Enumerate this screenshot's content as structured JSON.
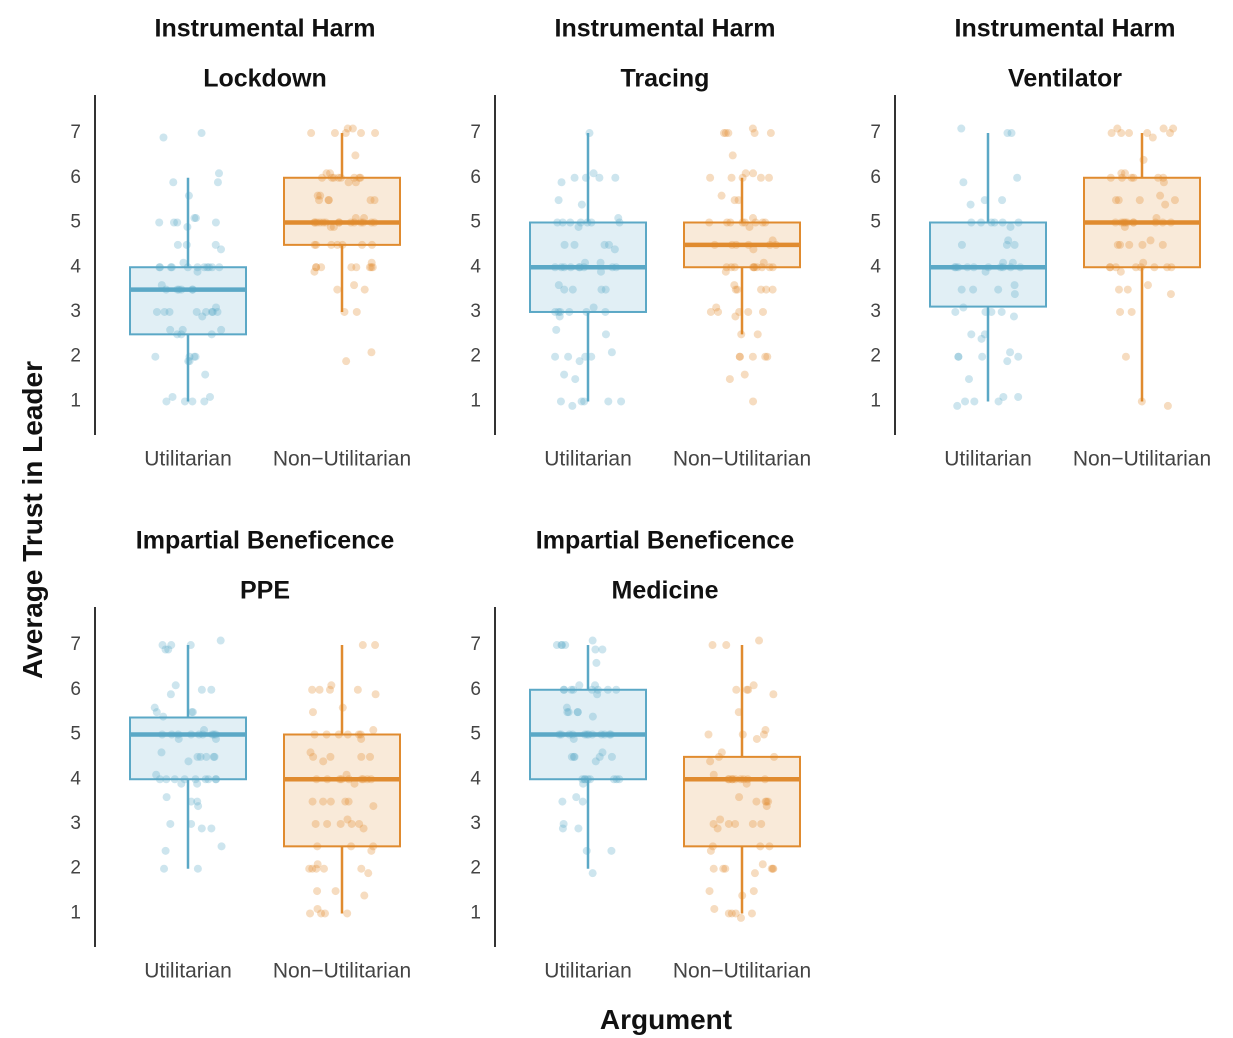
{
  "figure": {
    "ylabel": "Average Trust in Leader",
    "xlabel": "Argument",
    "colors": {
      "utilitarian": "#5ba8c6",
      "non_utilitarian": "#e08b2f"
    }
  },
  "chart_data": [
    {
      "type": "box",
      "title": [
        "Instrumental Harm",
        "Lockdown"
      ],
      "categories": [
        "Utilitarian",
        "Non−Utilitarian"
      ],
      "y_ticks": [
        1,
        2,
        3,
        4,
        5,
        6,
        7
      ],
      "ylim": [
        0.25,
        7.85
      ],
      "boxes": [
        {
          "q1": 2.5,
          "median": 3.5,
          "q3": 4.0,
          "whisker_low": 1.0,
          "whisker_high": 6.0,
          "points": [
            1,
            1,
            1,
            1,
            1.1,
            1.1,
            1.6,
            1.9,
            1.9,
            2,
            2,
            2,
            2,
            2.5,
            2.5,
            2.5,
            2.6,
            2.6,
            2.6,
            2.9,
            3,
            3,
            3,
            3,
            3,
            3,
            3,
            3,
            3.1,
            3.5,
            3.5,
            3.5,
            3.5,
            3.5,
            3.5,
            3.6,
            3.9,
            4,
            4,
            4,
            4,
            4,
            4,
            4,
            4,
            4,
            4,
            4,
            4.1,
            4.4,
            4.5,
            4.5,
            4.5,
            4.9,
            5,
            5,
            5,
            5,
            5.1,
            5.1,
            5.6,
            5.9,
            5.9,
            6.1,
            6.9,
            7
          ]
        },
        {
          "q1": 4.5,
          "median": 5.0,
          "q3": 6.0,
          "whisker_low": 3.0,
          "whisker_high": 7.0,
          "points": [
            1.9,
            2.1,
            3,
            3,
            3.5,
            3.5,
            3.6,
            3.9,
            4,
            4,
            4,
            4,
            4,
            4,
            4,
            4,
            4.1,
            4.5,
            4.5,
            4.5,
            4.5,
            4.5,
            4.5,
            4.5,
            4.9,
            4.9,
            5,
            5,
            5,
            5,
            5,
            5,
            5,
            5,
            5,
            5,
            5,
            5,
            5,
            5,
            5.1,
            5.1,
            5.5,
            5.5,
            5.5,
            5.5,
            5.5,
            5.6,
            5.6,
            5.9,
            5.9,
            6,
            6,
            6,
            6,
            6,
            6,
            6,
            6,
            6.1,
            6.1,
            6.5,
            7,
            7,
            7,
            7,
            7,
            7.1,
            7.1
          ]
        }
      ]
    },
    {
      "type": "box",
      "title": [
        "Instrumental Harm",
        "Tracing"
      ],
      "categories": [
        "Utilitarian",
        "Non−Utilitarian"
      ],
      "y_ticks": [
        1,
        2,
        3,
        4,
        5,
        6,
        7
      ],
      "ylim": [
        0.25,
        7.85
      ],
      "boxes": [
        {
          "q1": 3.0,
          "median": 4.0,
          "q3": 5.0,
          "whisker_low": 1.0,
          "whisker_high": 7.0,
          "points": [
            0.9,
            1,
            1,
            1,
            1,
            1,
            1.5,
            1.6,
            1.9,
            2,
            2,
            2,
            2,
            2.1,
            2.5,
            2.6,
            2.9,
            3,
            3,
            3,
            3,
            3,
            3,
            3.1,
            3.5,
            3.5,
            3.5,
            3.5,
            3.6,
            3.9,
            4,
            4,
            4,
            4,
            4,
            4,
            4,
            4,
            4,
            4.1,
            4.1,
            4.4,
            4.5,
            4.5,
            4.5,
            4.5,
            4.9,
            5,
            5,
            5,
            5,
            5,
            5,
            5,
            5.1,
            5.4,
            5.5,
            5.9,
            6,
            6,
            6,
            6,
            6.1,
            7
          ]
        },
        {
          "q1": 4.0,
          "median": 4.5,
          "q3": 5.0,
          "whisker_low": 2.5,
          "whisker_high": 6.0,
          "points": [
            1,
            1.5,
            1.6,
            2,
            2,
            2,
            2,
            2,
            2.5,
            2.5,
            2.9,
            3,
            3,
            3,
            3,
            3,
            3.1,
            3.5,
            3.5,
            3.5,
            3.5,
            3.5,
            3.6,
            3.9,
            4,
            4,
            4,
            4,
            4,
            4,
            4,
            4,
            4,
            4,
            4.1,
            4.4,
            4.5,
            4.5,
            4.5,
            4.5,
            4.5,
            4.5,
            4.6,
            4.9,
            5,
            5,
            5,
            5,
            5,
            5,
            5,
            5,
            5.1,
            5.5,
            5.5,
            5.6,
            6,
            6,
            6,
            6,
            6,
            6.1,
            6.1,
            6.5,
            7,
            7,
            7,
            7,
            7,
            7.1
          ]
        }
      ]
    },
    {
      "type": "box",
      "title": [
        "Instrumental Harm",
        "Ventilator"
      ],
      "categories": [
        "Utilitarian",
        "Non−Utilitarian"
      ],
      "y_ticks": [
        1,
        2,
        3,
        4,
        5,
        6,
        7
      ],
      "ylim": [
        0.25,
        7.85
      ],
      "boxes": [
        {
          "q1": 3.12,
          "median": 4.0,
          "q3": 5.0,
          "whisker_low": 1.0,
          "whisker_high": 7.0,
          "points": [
            0.9,
            1,
            1,
            1,
            1.1,
            1.1,
            1.5,
            1.9,
            2,
            2,
            2,
            2,
            2.1,
            2.4,
            2.5,
            2.5,
            2.9,
            3,
            3,
            3,
            3,
            3.1,
            3.4,
            3.5,
            3.5,
            3.5,
            3.6,
            3.9,
            4,
            4,
            4,
            4,
            4,
            4,
            4,
            4,
            4,
            4,
            4.1,
            4.1,
            4.5,
            4.5,
            4.5,
            4.6,
            4.9,
            5,
            5,
            5,
            5,
            5,
            5,
            5.4,
            5.5,
            5.5,
            5.9,
            6,
            7,
            7,
            7.1
          ]
        },
        {
          "q1": 4.0,
          "median": 5.0,
          "q3": 6.0,
          "whisker_low": 1.0,
          "whisker_high": 7.0,
          "points": [
            0.9,
            1,
            2,
            3,
            3,
            3.4,
            3.5,
            3.5,
            3.6,
            3.9,
            4,
            4,
            4,
            4,
            4,
            4,
            4,
            4,
            4.1,
            4.5,
            4.5,
            4.5,
            4.5,
            4.5,
            4.6,
            4.9,
            5,
            5,
            5,
            5,
            5,
            5,
            5,
            5,
            5,
            5,
            5.1,
            5.4,
            5.5,
            5.5,
            5.5,
            5.5,
            5.6,
            5.9,
            6,
            6,
            6,
            6,
            6,
            6,
            6.1,
            6.1,
            6.4,
            6.9,
            7,
            7,
            7,
            7,
            7,
            7.1,
            7.1,
            7.1
          ]
        }
      ]
    },
    {
      "type": "box",
      "title": [
        "Impartial Beneficence",
        "PPE"
      ],
      "categories": [
        "Utilitarian",
        "Non−Utilitarian"
      ],
      "y_ticks": [
        1,
        2,
        3,
        4,
        5,
        6,
        7
      ],
      "ylim": [
        0.25,
        7.85
      ],
      "boxes": [
        {
          "q1": 4.0,
          "median": 5.0,
          "q3": 5.38,
          "whisker_low": 2.0,
          "whisker_high": 7.0,
          "points": [
            2,
            2,
            2.4,
            2.5,
            2.9,
            2.9,
            3,
            3,
            3.4,
            3.5,
            3.5,
            3.6,
            3.9,
            3.9,
            4,
            4,
            4,
            4,
            4,
            4,
            4,
            4,
            4,
            4.1,
            4.4,
            4.5,
            4.5,
            4.5,
            4.5,
            4.5,
            4.6,
            4.9,
            4.9,
            5,
            5,
            5,
            5,
            5,
            5,
            5,
            5,
            5,
            5.1,
            5.4,
            5.5,
            5.5,
            5.5,
            5.6,
            5.9,
            6,
            6,
            6.1,
            6.9,
            6.9,
            7,
            7,
            7,
            7.1
          ]
        },
        {
          "q1": 2.5,
          "median": 4.0,
          "q3": 5.0,
          "whisker_low": 1.0,
          "whisker_high": 7.0,
          "points": [
            1,
            1,
            1,
            1,
            1.1,
            1.4,
            1.5,
            1.5,
            1.9,
            2,
            2,
            2,
            2,
            2,
            2.1,
            2.4,
            2.5,
            2.5,
            2.5,
            2.9,
            3,
            3,
            3,
            3,
            3,
            3.1,
            3.4,
            3.5,
            3.5,
            3.5,
            3.5,
            3.5,
            3.9,
            4,
            4,
            4,
            4,
            4,
            4,
            4,
            4,
            4,
            4.1,
            4.4,
            4.5,
            4.5,
            4.5,
            4.5,
            4.6,
            4.9,
            5,
            5,
            5,
            5,
            5,
            5,
            5.1,
            5.5,
            5.6,
            5.9,
            6,
            6,
            6,
            6,
            6.1,
            7,
            7
          ]
        }
      ]
    },
    {
      "type": "box",
      "title": [
        "Impartial Beneficence",
        "Medicine"
      ],
      "categories": [
        "Utilitarian",
        "Non−Utilitarian"
      ],
      "y_ticks": [
        1,
        2,
        3,
        4,
        5,
        6,
        7
      ],
      "ylim": [
        0.25,
        7.85
      ],
      "boxes": [
        {
          "q1": 4.0,
          "median": 5.0,
          "q3": 6.0,
          "whisker_low": 2.0,
          "whisker_high": 7.0,
          "points": [
            1.9,
            2.4,
            2.4,
            2.9,
            2.9,
            3,
            3.5,
            3.5,
            3.6,
            3.9,
            4,
            4,
            4,
            4,
            4,
            4,
            4,
            4,
            4.4,
            4.5,
            4.5,
            4.5,
            4.5,
            4.5,
            4.6,
            4.9,
            5,
            5,
            5,
            5,
            5,
            5,
            5,
            5,
            5,
            5,
            5,
            5,
            5.4,
            5.5,
            5.5,
            5.5,
            5.5,
            5.6,
            5.9,
            6,
            6,
            6,
            6,
            6,
            6,
            6,
            6,
            6.1,
            6.1,
            6.6,
            6.9,
            6.9,
            7,
            7,
            7,
            7,
            7.1
          ]
        },
        {
          "q1": 2.5,
          "median": 4.0,
          "q3": 4.5,
          "whisker_low": 1.0,
          "whisker_high": 7.0,
          "points": [
            0.9,
            1,
            1,
            1,
            1,
            1.1,
            1.4,
            1.5,
            1.5,
            1.9,
            2,
            2,
            2,
            2,
            2,
            2,
            2.1,
            2.4,
            2.5,
            2.5,
            2.5,
            2.9,
            3,
            3,
            3,
            3,
            3,
            3.1,
            3.4,
            3.5,
            3.5,
            3.5,
            3.5,
            3.6,
            3.9,
            4,
            4,
            4,
            4,
            4,
            4,
            4,
            4,
            4,
            4.1,
            4.4,
            4.5,
            4.5,
            4.6,
            4.9,
            5,
            5,
            5,
            5.1,
            5.5,
            5.9,
            6,
            6,
            6,
            6.1,
            7,
            7,
            7.1
          ]
        }
      ]
    }
  ]
}
